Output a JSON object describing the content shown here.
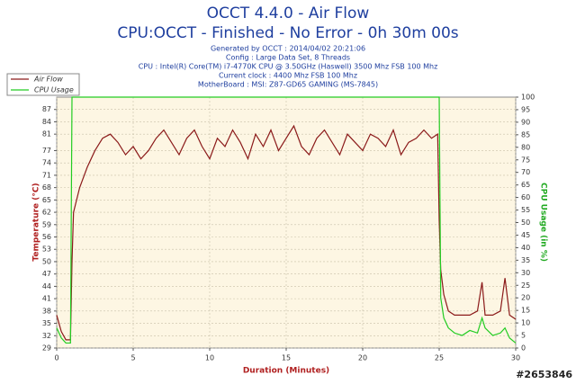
{
  "chart_data": {
    "type": "line",
    "title": "OCCT 4.4.0 - Air Flow",
    "subtitle": "CPU:OCCT - Finished - No Error - 0h 30m 00s",
    "notes": [
      "Generated by OCCT : 2014/04/02 20:21:06",
      "Config : Large Data Set, 8 Threads",
      "CPU : Intel(R) Core(TM) i7-4770K CPU @ 3.50GHz (Haswell) 3500 Mhz FSB 100 Mhz",
      "Current clock : 4400 Mhz FSB 100 Mhz",
      "MotherBoard : MSI: Z87-GD65 GAMING (MS-7845)"
    ],
    "xlabel": "Duration (Minutes)",
    "ylabel": "Temperature (°C)",
    "y2label": "CPU Usage (in %)",
    "watermark": "#2653846",
    "x": [
      0,
      0.3,
      0.6,
      0.9,
      1.0,
      1.1,
      1.5,
      2,
      2.5,
      3,
      3.5,
      4,
      4.5,
      5,
      5.5,
      6,
      6.5,
      7,
      7.5,
      8,
      8.5,
      9,
      9.5,
      10,
      10.5,
      11,
      11.5,
      12,
      12.5,
      13,
      13.5,
      14,
      14.5,
      15,
      15.5,
      16,
      16.5,
      17,
      17.5,
      18,
      18.5,
      19,
      19.5,
      20,
      20.5,
      21,
      21.5,
      22,
      22.5,
      23,
      23.5,
      24,
      24.5,
      24.9,
      25.0,
      25.1,
      25.3,
      25.6,
      26,
      26.5,
      27,
      27.5,
      27.8,
      28,
      28.5,
      29,
      29.3,
      29.6,
      30
    ],
    "series": [
      {
        "name": "Air Flow",
        "color": "#8b1a1a",
        "values": [
          37,
          33,
          31,
          31,
          50,
          62,
          68,
          73,
          77,
          80,
          81,
          79,
          76,
          78,
          75,
          77,
          80,
          82,
          79,
          76,
          80,
          82,
          78,
          75,
          80,
          78,
          82,
          79,
          75,
          81,
          78,
          82,
          77,
          80,
          83,
          78,
          76,
          80,
          82,
          79,
          76,
          81,
          79,
          77,
          81,
          80,
          78,
          82,
          76,
          79,
          80,
          82,
          80,
          81,
          60,
          48,
          42,
          38,
          37,
          37,
          37,
          38,
          45,
          37,
          37,
          38,
          46,
          37,
          36
        ]
      },
      {
        "name": "CPU Usage",
        "color": "#22cc22",
        "axis": "y2",
        "values": [
          8,
          4,
          2,
          2,
          100,
          100,
          100,
          100,
          100,
          100,
          100,
          100,
          100,
          100,
          100,
          100,
          100,
          100,
          100,
          100,
          100,
          100,
          100,
          100,
          100,
          100,
          100,
          100,
          100,
          100,
          100,
          100,
          100,
          100,
          100,
          100,
          100,
          100,
          100,
          100,
          100,
          100,
          100,
          100,
          100,
          100,
          100,
          100,
          100,
          100,
          100,
          100,
          100,
          100,
          100,
          20,
          12,
          8,
          6,
          5,
          7,
          6,
          12,
          8,
          5,
          6,
          8,
          4,
          2
        ]
      }
    ],
    "xlim": [
      0,
      30
    ],
    "xticks": [
      0,
      5,
      10,
      15,
      20,
      25,
      30
    ],
    "ylim": [
      29,
      90
    ],
    "yticks": [
      29,
      32,
      35,
      38,
      41,
      44,
      47,
      50,
      53,
      56,
      59,
      62,
      65,
      68,
      71,
      74,
      77,
      81,
      84,
      87
    ],
    "y2lim": [
      0,
      100
    ],
    "y2ticks": [
      0,
      5,
      10,
      15,
      20,
      25,
      30,
      35,
      40,
      45,
      50,
      55,
      60,
      65,
      70,
      75,
      80,
      85,
      90,
      95,
      100
    ],
    "grid": true,
    "legend": "upper left"
  }
}
